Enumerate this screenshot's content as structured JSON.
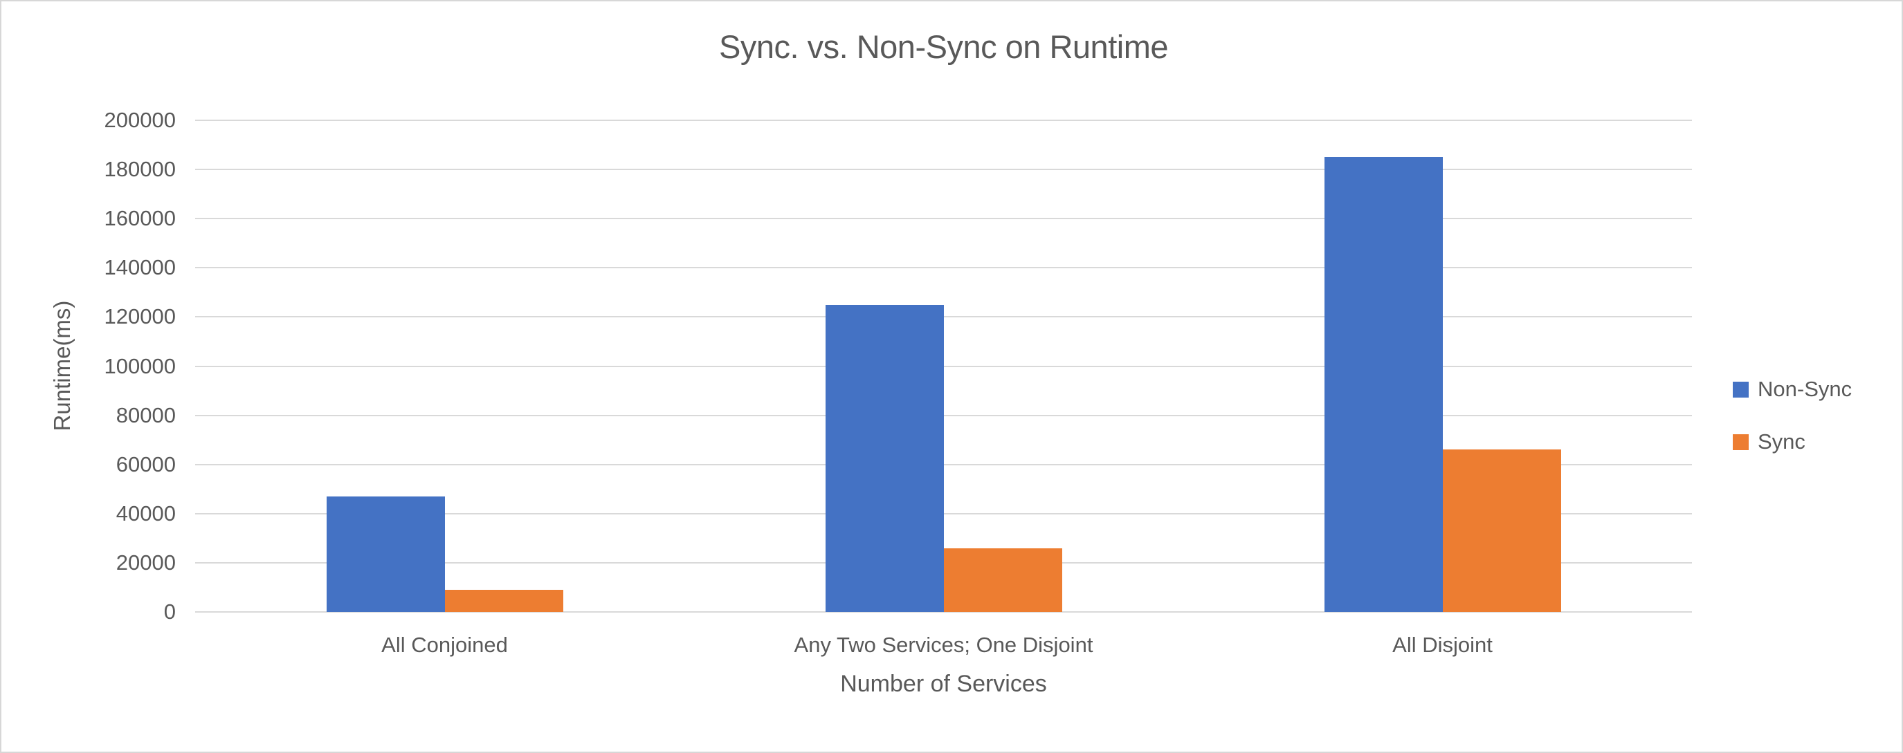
{
  "chart_data": {
    "type": "bar",
    "title": "Sync. vs. Non-Sync on Runtime",
    "xlabel": "Number of Services",
    "ylabel": "Runtime(ms)",
    "categories": [
      "All Conjoined",
      "Any Two Services; One Disjoint",
      "All Disjoint"
    ],
    "series": [
      {
        "name": "Non-Sync",
        "color": "#4472C4",
        "values": [
          47000,
          125000,
          185000
        ]
      },
      {
        "name": "Sync",
        "color": "#ED7D31",
        "values": [
          9000,
          26000,
          66000
        ]
      }
    ],
    "ylim": [
      0,
      200000
    ],
    "yticks": [
      0,
      20000,
      40000,
      60000,
      80000,
      100000,
      120000,
      140000,
      160000,
      180000,
      200000
    ],
    "ytick_labels": [
      "0",
      "20000",
      "40000",
      "60000",
      "80000",
      "100000",
      "120000",
      "140000",
      "160000",
      "180000",
      "200000"
    ],
    "grid": true,
    "legend_position": "right",
    "theme": {
      "grid_color": "#D9D9D9",
      "axis_line_color": "#D9D9D9",
      "text_color": "#595959",
      "background": "#FFFFFF",
      "frame_border": "#D7D7D7"
    }
  }
}
